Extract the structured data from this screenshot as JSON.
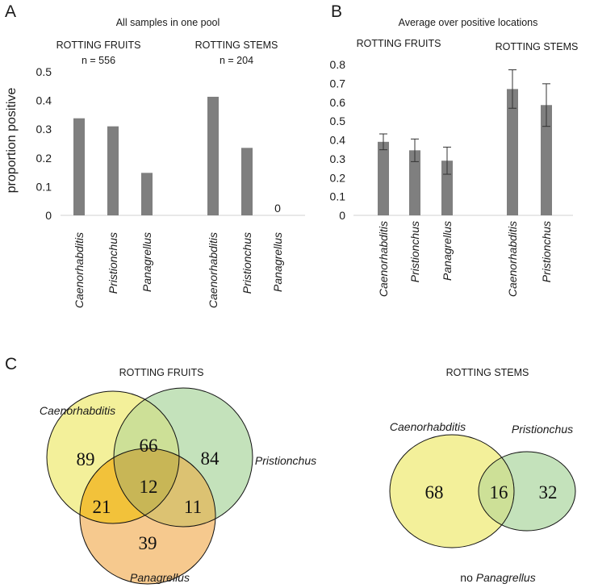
{
  "chart_data": [
    {
      "panel": "A",
      "type": "bar",
      "title": "All samples in one pool",
      "ylabel": "proportion positive",
      "ylim": [
        0,
        0.5
      ],
      "yticks": [
        "0",
        "0.1",
        "0.2",
        "0.3",
        "0.4",
        "0.5"
      ],
      "groups": [
        {
          "name": "ROTTING FRUITS",
          "n_label": "n = 556",
          "categories": [
            "Caenorhabditis",
            "Pristionchus",
            "Panagrellus"
          ],
          "values": [
            0.338,
            0.31,
            0.148
          ]
        },
        {
          "name": "ROTTING STEMS",
          "n_label": "n = 204",
          "categories": [
            "Caenorhabditis",
            "Pristionchus",
            "Panagrellus"
          ],
          "values": [
            0.413,
            0.235,
            0
          ],
          "data_labels": [
            "",
            "",
            "0"
          ]
        }
      ],
      "bar_color": "#7f7f7f"
    },
    {
      "panel": "B",
      "type": "bar",
      "title": "Average over positive locations",
      "ylim": [
        0,
        0.8
      ],
      "yticks": [
        "0",
        "0.1",
        "0.2",
        "0.3",
        "0.4",
        "0.5",
        "0.6",
        "0.7",
        "0.8"
      ],
      "groups": [
        {
          "name": "ROTTING FRUITS",
          "categories": [
            "Caenorhabditis",
            "Pristionchus",
            "Panagrellus"
          ],
          "values": [
            0.39,
            0.345,
            0.29
          ],
          "errors": [
            0.042,
            0.06,
            0.072
          ]
        },
        {
          "name": "ROTTING STEMS",
          "categories": [
            "Caenorhabditis",
            "Pristionchus"
          ],
          "values": [
            0.67,
            0.585
          ],
          "errors": [
            0.102,
            0.113
          ]
        }
      ],
      "bar_color": "#7f7f7f"
    },
    {
      "panel": "C",
      "type": "venn",
      "diagrams": [
        {
          "title": "ROTTING FRUITS",
          "sets": [
            "Caenorhabditis",
            "Pristionchus",
            "Panagrellus"
          ],
          "regions": {
            "C_only": "89",
            "P_only": "84",
            "G_only": "39",
            "C_P": "66",
            "C_G": "21",
            "P_G": "11",
            "C_P_G": "12"
          }
        },
        {
          "title": "ROTTING STEMS",
          "sets": [
            "Caenorhabditis",
            "Pristionchus"
          ],
          "regions": {
            "C_only": "68",
            "C_P": "16",
            "P_only": "32"
          },
          "note_prefix": "no",
          "note_taxon": "Panagrellus"
        }
      ],
      "colors": {
        "caeno": "#f3f09a",
        "pristio": "#c4e2bb",
        "panag": "#f6c98e",
        "caeno_pristio": "#cde097",
        "caeno_panag": "#f2c23a",
        "pristio_panag": "#dcc272",
        "all_three": "#c8b656"
      }
    }
  ]
}
